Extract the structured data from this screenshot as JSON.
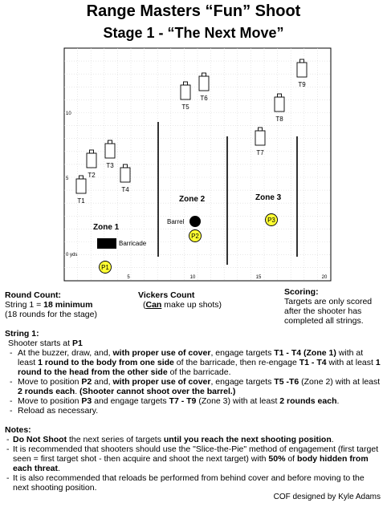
{
  "title": "Range Masters “Fun” Shoot",
  "subtitle": "Stage 1 - “The Next Move”",
  "diagram": {
    "targets": [
      "T1",
      "T2",
      "T3",
      "T4",
      "T5",
      "T6",
      "T7",
      "T8",
      "T9"
    ],
    "zones": [
      "Zone 1",
      "Zone 2",
      "Zone 3"
    ],
    "positions": [
      "P1",
      "P2",
      "P3"
    ],
    "barrel_label": "Barrel",
    "barricade_label": "Barricade",
    "y_ticks": [
      "10",
      "5",
      "0 yds"
    ],
    "x_ticks": [
      "5",
      "10",
      "15",
      "20"
    ]
  },
  "round_count": {
    "heading": "Round Count:",
    "string_prefix": "String 1 = ",
    "string_value": "18 minimum",
    "note": "(18 rounds for the stage)"
  },
  "vickers": {
    "heading": "Vickers Count",
    "can": "Can",
    "rest": " make up shots)"
  },
  "scoring": {
    "heading": "Scoring:",
    "text": "Targets are only scored after the shooter has completed all strings."
  },
  "string1": {
    "heading": "String 1:",
    "start_prefix": "Shooter starts at ",
    "start_pos": "P1",
    "steps": [
      [
        {
          "t": "At the buzzer, draw, and, "
        },
        {
          "t": "with proper use of cover",
          "b": true
        },
        {
          "t": ", engage targets "
        },
        {
          "t": "T1 - T4 (Zone 1)",
          "b": true
        },
        {
          "t": " with at least "
        },
        {
          "t": "1 round to the body from one side",
          "b": true
        },
        {
          "t": " of the barricade, then re-engage "
        },
        {
          "t": "T1 - T4",
          "b": true
        },
        {
          "t": " with at least "
        },
        {
          "t": "1 round to the head from the other side",
          "b": true
        },
        {
          "t": " of the barricade."
        }
      ],
      [
        {
          "t": "Move to position "
        },
        {
          "t": "P2",
          "b": true
        },
        {
          "t": " and, "
        },
        {
          "t": "with proper use of cover",
          "b": true
        },
        {
          "t": ", engage targets "
        },
        {
          "t": "T5 -T6",
          "b": true
        },
        {
          "t": " (Zone 2) with at least "
        },
        {
          "t": "2 rounds each",
          "b": true
        },
        {
          "t": ". "
        },
        {
          "t": "(Shooter cannot shoot over the barrel.)",
          "b": true
        }
      ],
      [
        {
          "t": "Move to position "
        },
        {
          "t": "P3",
          "b": true
        },
        {
          "t": " and engage targets "
        },
        {
          "t": "T7 - T9",
          "b": true
        },
        {
          "t": " (Zone 3) with at least "
        },
        {
          "t": "2 rounds each",
          "b": true
        },
        {
          "t": "."
        }
      ],
      [
        {
          "t": "Reload as necessary."
        }
      ]
    ]
  },
  "notes": {
    "heading": "Notes:",
    "items": [
      [
        {
          "t": "Do Not Shoot",
          "b": true
        },
        {
          "t": " the next series of targets "
        },
        {
          "t": "until you reach the next shooting position",
          "b": true
        },
        {
          "t": "."
        }
      ],
      [
        {
          "t": "It is recommended that shooters should use the \"Slice-the-Pie\" method of engagement (first target seen = first target shot - then acquire and shoot the next target) with "
        },
        {
          "t": "50%",
          "b": true
        },
        {
          "t": " of "
        },
        {
          "t": "body hidden from each threat",
          "b": true
        },
        {
          "t": "."
        }
      ],
      [
        {
          "t": "It is also recommended that reloads be performed from behind cover and before moving to the next shooting position."
        }
      ]
    ]
  },
  "credit": "COF designed by Kyle Adams"
}
